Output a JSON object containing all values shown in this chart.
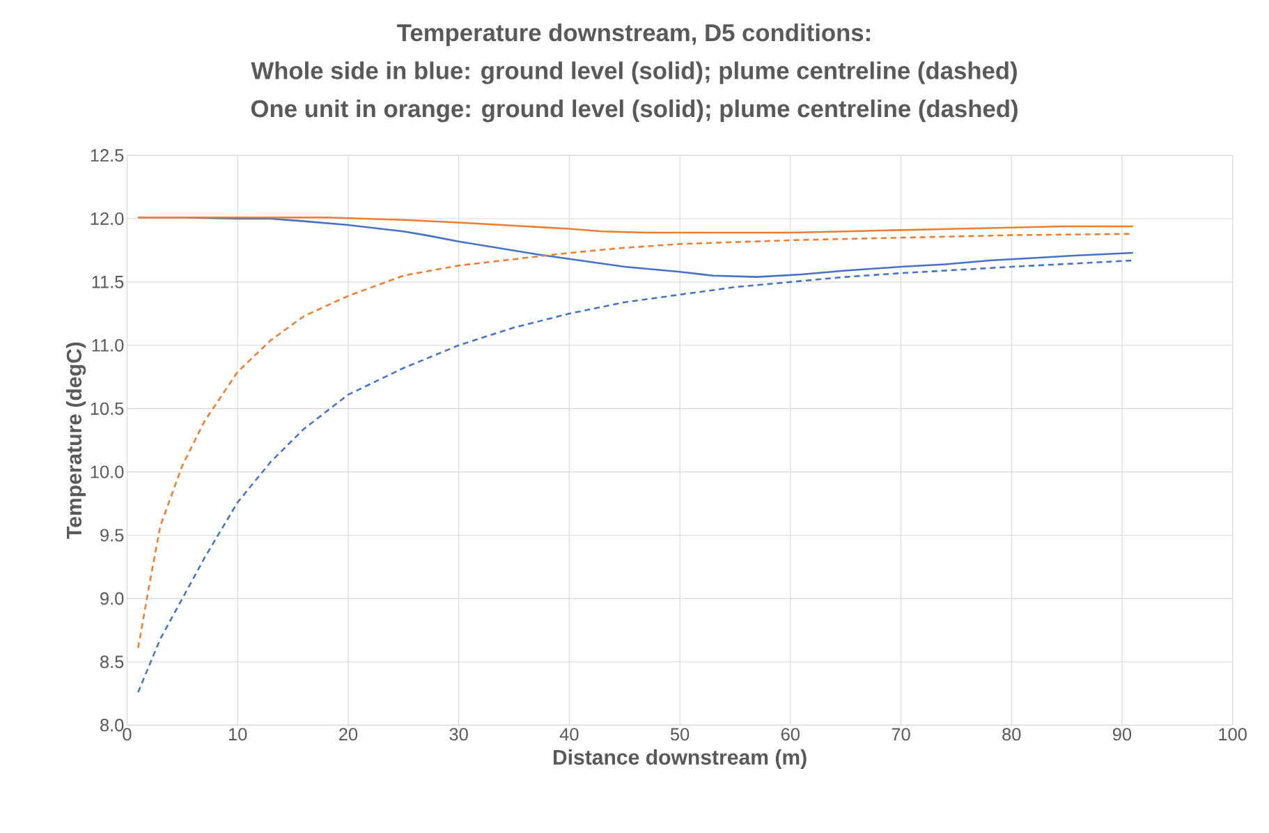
{
  "chart_data": {
    "type": "line",
    "title": "Temperature downstream, D5 conditions:",
    "subtitle": "Whole side in blue: ground level (solid); plume centreline (dashed)",
    "annotations": [
      "One unit in orange: ground level (solid); plume centreline (dashed)"
    ],
    "xlabel": "Distance downstream (m)",
    "ylabel": "Temperature (degC)",
    "xlim": [
      0,
      100
    ],
    "xticks": [
      0,
      10,
      20,
      30,
      40,
      50,
      60,
      70,
      80,
      90,
      100
    ],
    "ylim": [
      8.0,
      12.5
    ],
    "yticks": [
      {
        "value": 8.0,
        "label": "8.0"
      },
      {
        "value": 8.5,
        "label": "8.5"
      },
      {
        "value": 9.0,
        "label": "9.0"
      },
      {
        "value": 9.5,
        "label": "9.5"
      },
      {
        "value": 10.0,
        "label": "10.0"
      },
      {
        "value": 10.5,
        "label": "10.5"
      },
      {
        "value": 11.0,
        "label": "11.0"
      },
      {
        "value": 11.5,
        "label": "11.5"
      },
      {
        "value": 12.0,
        "label": "12.0"
      },
      {
        "value": 12.5,
        "label": "12.5"
      }
    ],
    "grid": true,
    "marker": "none",
    "series": [
      {
        "color": "#4472c4",
        "line_style": "solid",
        "x": [
          1,
          5,
          10,
          13,
          16,
          20,
          25,
          27,
          30,
          37,
          41,
          45,
          50,
          53,
          57,
          61,
          65,
          70,
          74,
          78,
          82,
          86,
          91
        ],
        "values": [
          12.01,
          12.01,
          12.0,
          12.0,
          11.98,
          11.95,
          11.9,
          11.87,
          11.82,
          11.72,
          11.67,
          11.62,
          11.58,
          11.55,
          11.54,
          11.56,
          11.59,
          11.62,
          11.64,
          11.67,
          11.69,
          11.71,
          11.73
        ]
      },
      {
        "color": "#ed7d31",
        "line_style": "solid",
        "x": [
          1,
          10,
          18,
          25,
          30,
          40,
          43,
          47,
          60,
          65,
          70,
          75,
          80,
          85,
          91
        ],
        "values": [
          12.01,
          12.01,
          12.01,
          11.99,
          11.97,
          11.92,
          11.9,
          11.89,
          11.89,
          11.9,
          11.91,
          11.92,
          11.93,
          11.94,
          11.94
        ]
      },
      {
        "color": "#4472c4",
        "line_style": "dashed",
        "x": [
          1,
          3,
          5,
          7,
          10,
          13,
          16,
          20,
          25,
          30,
          35,
          40,
          45,
          50,
          55,
          60,
          65,
          70,
          80,
          91
        ],
        "values": [
          8.26,
          8.68,
          9.0,
          9.32,
          9.76,
          10.08,
          10.34,
          10.61,
          10.82,
          11.0,
          11.14,
          11.25,
          11.34,
          11.4,
          11.46,
          11.5,
          11.54,
          11.57,
          11.62,
          11.67
        ]
      },
      {
        "color": "#ed7d31",
        "line_style": "dashed",
        "x": [
          1,
          2,
          3,
          5,
          7,
          10,
          13,
          16,
          20,
          25,
          30,
          35,
          40,
          45,
          50,
          60,
          70,
          80,
          91
        ],
        "values": [
          8.61,
          9.1,
          9.57,
          10.05,
          10.4,
          10.79,
          11.04,
          11.23,
          11.39,
          11.55,
          11.63,
          11.68,
          11.73,
          11.77,
          11.8,
          11.83,
          11.85,
          11.87,
          11.88
        ]
      }
    ]
  }
}
